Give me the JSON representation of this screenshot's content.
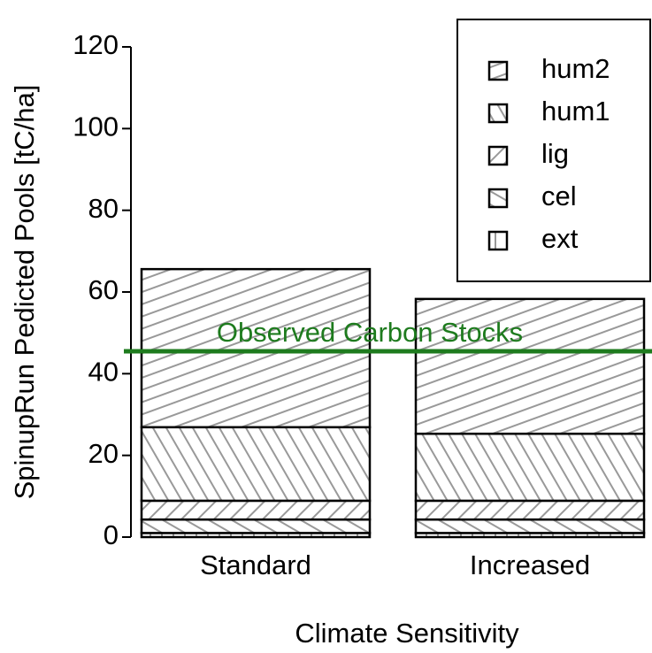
{
  "chart_data": {
    "type": "stacked-bar",
    "xlabel": "Climate Sensitivity",
    "ylabel": "SpinupRun Pedicted Pools [tC/ha]",
    "categories": [
      "Standard",
      "Increased"
    ],
    "series": [
      {
        "name": "ext",
        "color": "#999999",
        "hatch_angle": 90,
        "values": [
          1,
          1
        ]
      },
      {
        "name": "cel",
        "color": "#999999",
        "hatch_angle": -30,
        "values": [
          3.3,
          3.3
        ]
      },
      {
        "name": "lig",
        "color": "#999999",
        "hatch_angle": 45,
        "values": [
          4.6,
          4.6
        ]
      },
      {
        "name": "hum1",
        "color": "#999999",
        "hatch_angle": -60,
        "values": [
          18,
          16.4
        ]
      },
      {
        "name": "hum2",
        "color": "#999999",
        "hatch_angle": 20,
        "values": [
          38.7,
          33
        ]
      }
    ],
    "ylim": [
      0,
      120
    ],
    "yticks": [
      0,
      20,
      40,
      60,
      80,
      100,
      120
    ],
    "hline": {
      "value": 45.5,
      "label": "Observed Carbon Stocks",
      "color": "#1e7b1e"
    },
    "legend": "top-right"
  }
}
